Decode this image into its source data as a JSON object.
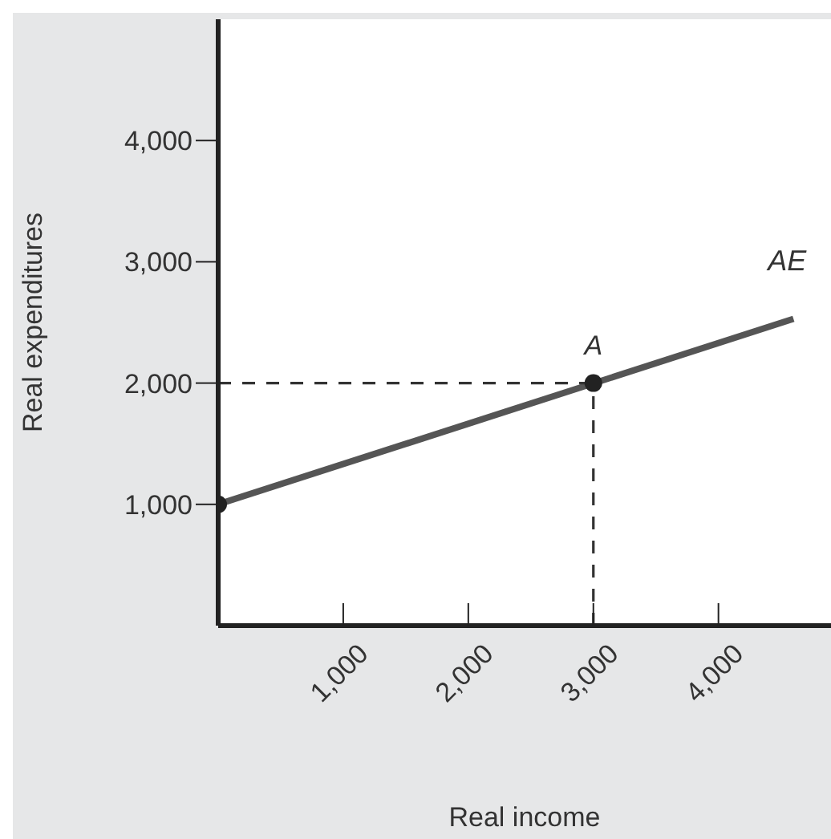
{
  "chart_data": {
    "type": "line",
    "xlabel": "Real income",
    "ylabel": "Real expenditures",
    "xlim": [
      0,
      4900
    ],
    "ylim": [
      0,
      5000
    ],
    "xticks": [
      {
        "value": 1000,
        "label": "1,000"
      },
      {
        "value": 2000,
        "label": "2,000"
      },
      {
        "value": 3000,
        "label": "3,000"
      },
      {
        "value": 4000,
        "label": "4,000"
      }
    ],
    "yticks": [
      {
        "value": 1000,
        "label": "1,000"
      },
      {
        "value": 2000,
        "label": "2,000"
      },
      {
        "value": 3000,
        "label": "3,000"
      },
      {
        "value": 4000,
        "label": "4,000"
      }
    ],
    "grid": false,
    "legend": false,
    "line_style": "solid",
    "marker": "none",
    "series": [
      {
        "name": "AE",
        "color": "#555555",
        "x": [
          0,
          4600
        ],
        "values": [
          1000,
          2530
        ]
      },
      {
        "color": "#333333",
        "type": "line",
        "line_style": "dashed",
        "x": [
          0,
          3000
        ],
        "values": [
          2000,
          2000
        ]
      },
      {
        "color": "#333333",
        "type": "line",
        "line_style": "dashed",
        "x": [
          3000,
          3000
        ],
        "values": [
          0,
          2000
        ]
      },
      {
        "color": "#222222",
        "type": "scatter",
        "marker": "circle",
        "x": [
          0,
          3000
        ],
        "values": [
          1000,
          2000
        ]
      }
    ],
    "annotations": [
      {
        "text": "A",
        "x": 3000,
        "y": 2000
      }
    ]
  }
}
